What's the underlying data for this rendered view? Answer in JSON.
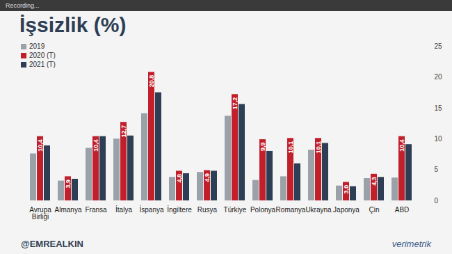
{
  "chart_data": {
    "type": "bar",
    "title": "İşsizlik (%)",
    "annotations": [
      "Recording...",
      "@EMREALKIN",
      "verimetrik"
    ],
    "categories": [
      "Avrupa Birliği",
      "Almanya",
      "Fransa",
      "İtalya",
      "İspanya",
      "İngiltere",
      "Rusya",
      "Türkiye",
      "Polonya",
      "Romanya",
      "Ukrayna",
      "Japonya",
      "Çin",
      "ABD"
    ],
    "series": [
      {
        "name": "2019",
        "color": "#9ba1a8",
        "data_labels": false,
        "values": [
          7.6,
          3.2,
          8.5,
          10.0,
          14.1,
          3.8,
          4.6,
          13.7,
          3.3,
          3.9,
          8.2,
          2.4,
          3.6,
          3.7
        ]
      },
      {
        "name": "2020 (T)",
        "color": "#c1202b",
        "data_labels": true,
        "values": [
          10.4,
          3.9,
          10.4,
          12.7,
          20.8,
          4.8,
          4.9,
          17.2,
          9.9,
          10.1,
          10.1,
          3.0,
          4.3,
          10.4
        ],
        "value_labels": [
          "10,4",
          "3,9",
          "10,4",
          "12,7",
          "20,8",
          "4,8",
          "4,9",
          "17,2",
          "9,9",
          "10,1",
          "10,1",
          "3,0",
          "4,3",
          "10,4"
        ]
      },
      {
        "name": "2021 (T)",
        "color": "#2e3f55",
        "data_labels": false,
        "values": [
          8.9,
          3.5,
          10.4,
          10.5,
          17.5,
          4.4,
          4.8,
          15.6,
          8.0,
          6.0,
          9.3,
          2.3,
          3.8,
          9.1
        ]
      }
    ],
    "ylim": [
      0,
      25
    ],
    "yticks": [
      0,
      5,
      10,
      15,
      20,
      25
    ],
    "legend": "top-left",
    "grid": false
  }
}
